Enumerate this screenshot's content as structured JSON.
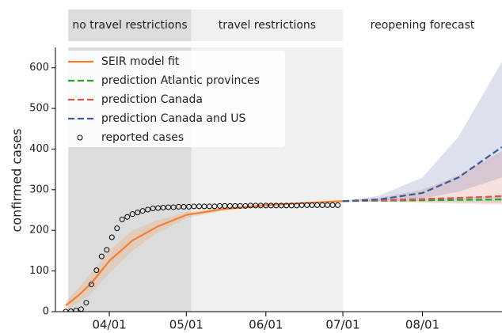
{
  "chart_data": {
    "type": "line",
    "y_label": "confirmed cases",
    "xlim": [
      "03/11",
      "09/01"
    ],
    "ylim": [
      0,
      650
    ],
    "xticks": [
      "04/01",
      "05/01",
      "06/01",
      "07/01",
      "08/01"
    ],
    "yticks": [
      0,
      100,
      200,
      300,
      400,
      500,
      600
    ],
    "legend": "upper left",
    "regions": [
      {
        "label": "no travel restrictions",
        "start": "03/16",
        "end": "05/03",
        "color": "#dcdcdc"
      },
      {
        "label": "travel restrictions",
        "start": "05/03",
        "end": "07/01",
        "color": "#f0f0f0"
      },
      {
        "label": "reopening forecast",
        "start": "07/01",
        "end": "09/01",
        "color": "#ffffff"
      }
    ],
    "series": [
      {
        "name": "SEIR model fit",
        "color": "#f28030",
        "style": "solid",
        "x": [
          "03/15",
          "03/20",
          "03/25",
          "04/01",
          "04/10",
          "04/20",
          "05/01",
          "05/15",
          "06/01",
          "06/15",
          "07/01"
        ],
        "values": [
          15,
          40,
          70,
          125,
          175,
          210,
          238,
          252,
          262,
          267,
          272
        ],
        "band_lower": [
          5,
          22,
          45,
          95,
          150,
          195,
          230,
          248,
          260,
          266,
          271
        ],
        "band_upper": [
          25,
          58,
          95,
          150,
          200,
          225,
          245,
          256,
          264,
          268,
          273
        ]
      },
      {
        "name": "prediction Atlantic provinces",
        "color": "#2ca02c",
        "style": "dashed",
        "x": [
          "07/01",
          "07/15",
          "08/01",
          "08/15",
          "09/01"
        ],
        "values": [
          272,
          273,
          274,
          275,
          276
        ],
        "band_lower": [
          272,
          271,
          270,
          269,
          268
        ],
        "band_upper": [
          272,
          275,
          278,
          281,
          284
        ]
      },
      {
        "name": "prediction Canada",
        "color": "#d9534f",
        "style": "dashed",
        "x": [
          "07/01",
          "07/15",
          "08/01",
          "08/15",
          "09/01"
        ],
        "values": [
          272,
          274,
          277,
          280,
          284
        ],
        "band_lower": [
          272,
          270,
          268,
          266,
          264
        ],
        "band_upper": [
          272,
          280,
          300,
          335,
          395
        ]
      },
      {
        "name": "prediction Canada and US",
        "color": "#3b5a9a",
        "style": "dashed",
        "x": [
          "07/01",
          "07/15",
          "08/01",
          "08/15",
          "09/01"
        ],
        "values": [
          272,
          276,
          292,
          330,
          405
        ],
        "band_lower": [
          272,
          272,
          278,
          295,
          330
        ],
        "band_upper": [
          272,
          285,
          330,
          430,
          615
        ]
      },
      {
        "name": "reported cases",
        "color": "#000000",
        "style": "markers",
        "x": [
          "03/15",
          "03/17",
          "03/19",
          "03/21",
          "03/23",
          "03/25",
          "03/27",
          "03/29",
          "03/31",
          "04/02",
          "04/04",
          "04/06",
          "04/08",
          "04/10",
          "04/12",
          "04/14",
          "04/16",
          "04/18",
          "04/20",
          "04/22",
          "04/24",
          "04/26",
          "04/28",
          "04/30",
          "05/02",
          "05/04",
          "05/06",
          "05/08",
          "05/10",
          "05/12",
          "05/14",
          "05/16",
          "05/18",
          "05/20",
          "05/22",
          "05/24",
          "05/26",
          "05/28",
          "05/30",
          "06/01",
          "06/03",
          "06/05",
          "06/07",
          "06/09",
          "06/11",
          "06/13",
          "06/15",
          "06/17",
          "06/19",
          "06/21",
          "06/23",
          "06/25",
          "06/27",
          "06/29"
        ],
        "values": [
          0,
          1,
          3,
          6,
          22,
          67,
          102,
          136,
          152,
          183,
          205,
          227,
          233,
          240,
          244,
          248,
          251,
          254,
          255,
          256,
          257,
          257,
          258,
          258,
          258,
          259,
          259,
          259,
          259,
          259,
          260,
          260,
          260,
          260,
          260,
          260,
          261,
          261,
          261,
          261,
          261,
          261,
          261,
          261,
          261,
          261,
          262,
          262,
          262,
          262,
          262,
          262,
          262,
          262
        ]
      }
    ]
  }
}
